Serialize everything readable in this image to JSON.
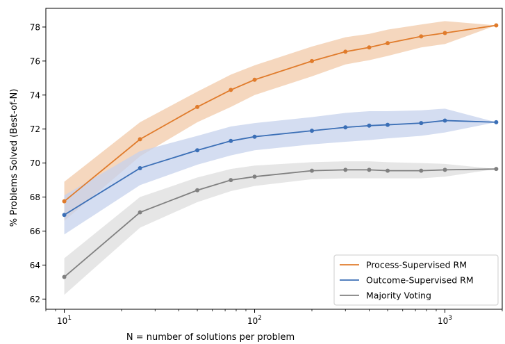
{
  "chart_data": {
    "type": "line",
    "title": "",
    "xlabel": "N = number of solutions per problem",
    "ylabel": "% Problems Solved (Best-of-N)",
    "xscale": "log",
    "xlim": [
      8,
      2000
    ],
    "ylim": [
      61.4,
      79.1
    ],
    "x_ticks": [
      {
        "value": 10,
        "label_base": "10",
        "label_exp": "1"
      },
      {
        "value": 100,
        "label_base": "10",
        "label_exp": "2"
      },
      {
        "value": 1000,
        "label_base": "10",
        "label_exp": "3"
      }
    ],
    "y_ticks": [
      {
        "value": 62,
        "label": "62"
      },
      {
        "value": 64,
        "label": "64"
      },
      {
        "value": 66,
        "label": "66"
      },
      {
        "value": 68,
        "label": "68"
      },
      {
        "value": 70,
        "label": "70"
      },
      {
        "value": 72,
        "label": "72"
      },
      {
        "value": 74,
        "label": "74"
      },
      {
        "value": 76,
        "label": "76"
      },
      {
        "value": 78,
        "label": "78"
      }
    ],
    "grid": false,
    "legend_position": "lower-right",
    "series": [
      {
        "name": "Process-Supervised RM",
        "color": "#e07b2b",
        "band_color": "#f2c9a8",
        "x": [
          10,
          25,
          50,
          75,
          100,
          200,
          300,
          400,
          500,
          750,
          1000,
          1860
        ],
        "y": [
          67.75,
          71.4,
          73.3,
          74.3,
          74.9,
          76.0,
          76.55,
          76.8,
          77.05,
          77.45,
          77.65,
          78.1
        ],
        "lower": [
          66.6,
          70.4,
          72.4,
          73.3,
          74.0,
          75.1,
          75.8,
          76.05,
          76.3,
          76.8,
          77.0,
          78.1
        ],
        "upper": [
          68.9,
          72.4,
          74.2,
          75.2,
          75.75,
          76.85,
          77.4,
          77.6,
          77.85,
          78.15,
          78.35,
          78.1
        ]
      },
      {
        "name": "Outcome-Supervised RM",
        "color": "#3b6fb6",
        "band_color": "#c5d2ec",
        "x": [
          10,
          25,
          50,
          75,
          100,
          200,
          300,
          400,
          500,
          750,
          1000,
          1860
        ],
        "y": [
          66.95,
          69.7,
          70.75,
          71.3,
          71.55,
          71.9,
          72.1,
          72.2,
          72.25,
          72.35,
          72.5,
          72.4
        ],
        "lower": [
          65.8,
          68.7,
          69.9,
          70.45,
          70.75,
          71.1,
          71.25,
          71.35,
          71.45,
          71.6,
          71.8,
          72.4
        ],
        "upper": [
          68.1,
          70.7,
          71.6,
          72.15,
          72.35,
          72.7,
          72.95,
          73.05,
          73.05,
          73.1,
          73.2,
          72.4
        ]
      },
      {
        "name": "Majority Voting",
        "color": "#808080",
        "band_color": "#dddddd",
        "x": [
          10,
          25,
          50,
          75,
          100,
          200,
          300,
          400,
          500,
          750,
          1000,
          1860
        ],
        "y": [
          63.3,
          67.1,
          68.4,
          69.0,
          69.2,
          69.55,
          69.6,
          69.6,
          69.55,
          69.55,
          69.6,
          69.65
        ],
        "lower": [
          62.25,
          66.2,
          67.7,
          68.35,
          68.65,
          69.05,
          69.1,
          69.1,
          69.1,
          69.1,
          69.2,
          69.65
        ],
        "upper": [
          64.4,
          68.0,
          69.15,
          69.65,
          69.85,
          70.05,
          70.1,
          70.1,
          70.05,
          70.0,
          69.95,
          69.65
        ]
      }
    ]
  }
}
